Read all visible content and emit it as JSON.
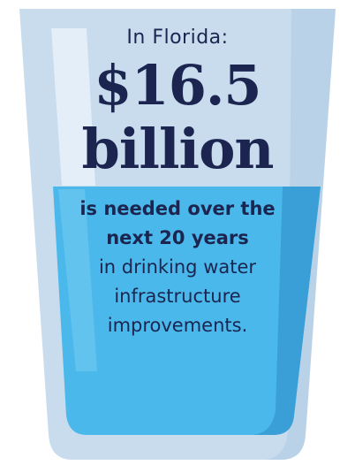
{
  "intro": "In Florida:",
  "amount": "$16.5",
  "amount_unit": "billion",
  "body_lines": [
    "is needed over the",
    "next 20 years",
    "in drinking water",
    "infrastructure",
    "improvements."
  ],
  "colors": {
    "glass": "#c8dcee",
    "glass_edge": "#b3cde6",
    "water": "#4ab8ea",
    "water_deep": "#3a9fd6",
    "text": "#1b2550"
  },
  "icons": {
    "illustration": "water-glass-icon"
  }
}
